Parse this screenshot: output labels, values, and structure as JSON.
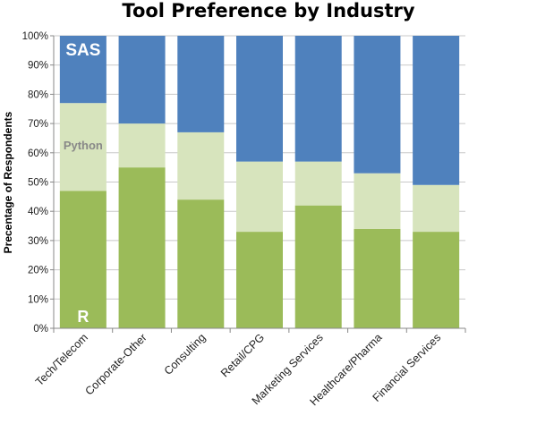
{
  "chart_data": {
    "type": "bar",
    "stacked": true,
    "title": "Tool Preference by Industry",
    "xlabel": "",
    "ylabel": "Precentage of Respondents",
    "ylim": [
      0,
      100
    ],
    "yticks": [
      "0%",
      "10%",
      "20%",
      "30%",
      "40%",
      "50%",
      "60%",
      "70%",
      "80%",
      "90%",
      "100%"
    ],
    "grid": true,
    "categories": [
      "Tech/Telecom",
      "Corporate-Other",
      "Consulting",
      "Retail/CPG",
      "Marketing Services",
      "Healthcare/Pharma",
      "Financial Services"
    ],
    "series": [
      {
        "name": "R",
        "color": "#9bbb59",
        "values": [
          47,
          55,
          44,
          33,
          42,
          34,
          33
        ]
      },
      {
        "name": "Python",
        "color": "#d7e4bd",
        "values": [
          30,
          15,
          23,
          24,
          15,
          19,
          16
        ]
      },
      {
        "name": "SAS",
        "color": "#4f81bd",
        "values": [
          23,
          30,
          33,
          43,
          43,
          47,
          51
        ]
      }
    ]
  }
}
